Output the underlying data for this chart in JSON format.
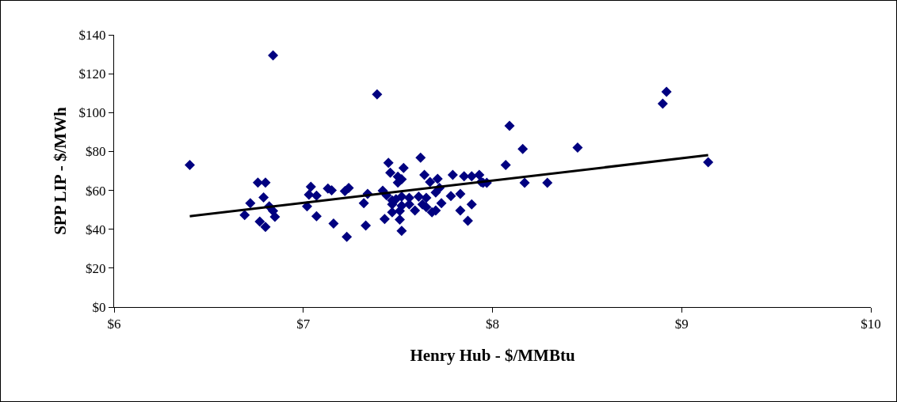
{
  "chart_data": {
    "type": "scatter",
    "xlabel": "Henry Hub - $/MMBtu",
    "ylabel": "SPP LIP - $/MWh",
    "xlim": [
      6,
      10
    ],
    "xticks": [
      {
        "value": 6,
        "label": "$6"
      },
      {
        "value": 7,
        "label": "$7"
      },
      {
        "value": 8,
        "label": "$8"
      },
      {
        "value": 9,
        "label": "$9"
      },
      {
        "value": 10,
        "label": "$10"
      }
    ],
    "ylim": [
      0,
      140
    ],
    "yticks": [
      {
        "value": 0,
        "label": "$0"
      },
      {
        "value": 20,
        "label": "$20"
      },
      {
        "value": 40,
        "label": "$40"
      },
      {
        "value": 60,
        "label": "$60"
      },
      {
        "value": 80,
        "label": "$80"
      },
      {
        "value": 100,
        "label": "$100"
      },
      {
        "value": 120,
        "label": "$120"
      },
      {
        "value": 140,
        "label": "$140"
      }
    ],
    "grid": false,
    "marker": "diamond",
    "series": [
      {
        "color": "#000080",
        "x": [
          6.4,
          6.84,
          7.39,
          6.76,
          6.8,
          6.72,
          6.79,
          6.69,
          6.82,
          6.84,
          6.85,
          6.77,
          6.8,
          7.04,
          7.03,
          7.07,
          7.02,
          7.07,
          7.13,
          7.15,
          7.16,
          7.22,
          7.24,
          7.23,
          7.34,
          7.32,
          7.33,
          7.42,
          7.45,
          7.46,
          7.53,
          7.62,
          7.5,
          7.52,
          7.5,
          7.44,
          7.47,
          7.49,
          7.52,
          7.56,
          7.61,
          7.65,
          7.47,
          7.52,
          7.56,
          7.63,
          7.47,
          7.51,
          7.59,
          7.65,
          7.43,
          7.51,
          7.52,
          7.64,
          7.67,
          7.71,
          7.7,
          7.72,
          7.68,
          7.7,
          7.73,
          7.78,
          7.83,
          7.83,
          7.87,
          7.89,
          7.79,
          7.85,
          7.89,
          7.93,
          7.95,
          7.94,
          7.97,
          8.09,
          8.16,
          8.07,
          8.17,
          8.29,
          8.45,
          8.9,
          8.92,
          9.14
        ],
        "values": [
          73.1,
          129.4,
          109.4,
          64.0,
          64.0,
          53.4,
          56.4,
          47.3,
          51.8,
          49.4,
          46.4,
          44.0,
          41.2,
          61.9,
          57.8,
          57.3,
          51.8,
          46.7,
          60.9,
          60.0,
          42.9,
          59.6,
          61.2,
          36.1,
          58.2,
          53.4,
          41.9,
          59.8,
          74.2,
          69.1,
          71.5,
          76.8,
          67.0,
          65.7,
          64.0,
          57.5,
          54.8,
          55.5,
          56.8,
          56.2,
          56.8,
          56.2,
          52.8,
          52.1,
          52.8,
          52.8,
          48.7,
          49.4,
          49.7,
          51.4,
          45.3,
          45.0,
          39.2,
          68.0,
          64.3,
          65.9,
          58.9,
          61.3,
          48.7,
          49.7,
          53.4,
          57.1,
          58.2,
          49.7,
          44.4,
          52.8,
          68.0,
          67.3,
          67.3,
          68.0,
          63.9,
          64.3,
          63.9,
          93.2,
          81.3,
          73.1,
          63.9,
          63.9,
          82.0,
          104.6,
          110.7,
          74.5
        ]
      },
      {
        "type": "line",
        "color": "#000000",
        "x": [
          6.4,
          9.14
        ],
        "values": [
          46.7,
          78.1
        ],
        "marker": "none",
        "line_style": "solid"
      }
    ]
  }
}
